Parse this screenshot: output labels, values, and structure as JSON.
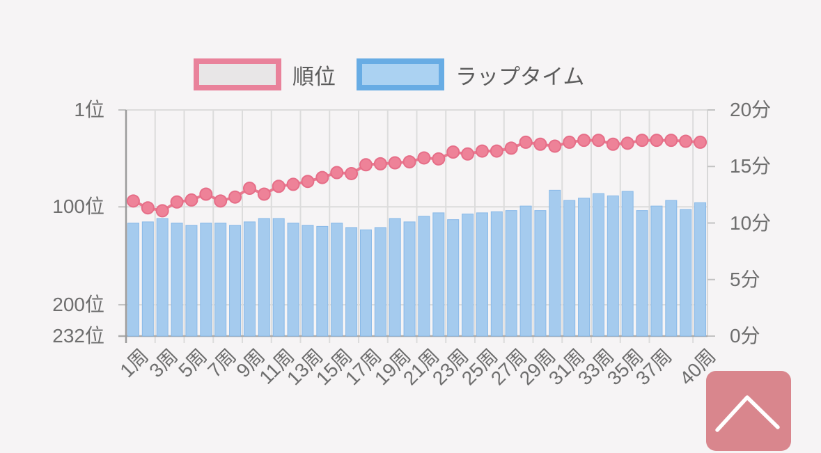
{
  "legend": {
    "items": [
      {
        "id": "rank",
        "label": "順位",
        "swatch_fill": "#e8e6e7",
        "swatch_border": "#e9829b"
      },
      {
        "id": "laptime",
        "label": "ラップタイム",
        "swatch_fill": "#abd2f2",
        "swatch_border": "#68ace4"
      }
    ]
  },
  "chart_data": {
    "type": "bar",
    "combo": "line over bars, dual y-axes",
    "title": "",
    "grid": true,
    "legend_position": "top",
    "x_unit": "周",
    "laps_count": 40,
    "x_tick_labels": [
      "1周",
      "3周",
      "5周",
      "7周",
      "9周",
      "11周",
      "13周",
      "15周",
      "17周",
      "19周",
      "21周",
      "23周",
      "25周",
      "27周",
      "29周",
      "31周",
      "33周",
      "35周",
      "37周",
      "40周"
    ],
    "x_tick_laps": [
      1,
      3,
      5,
      7,
      9,
      11,
      13,
      15,
      17,
      19,
      21,
      23,
      25,
      27,
      29,
      31,
      33,
      35,
      37,
      40
    ],
    "left_axis": {
      "title": "順位",
      "inverted": true,
      "range": [
        1,
        232
      ],
      "ticks": [
        {
          "label": "1位",
          "value": 1
        },
        {
          "label": "100位",
          "value": 100
        },
        {
          "label": "200位",
          "value": 200
        },
        {
          "label": "232位",
          "value": 232
        }
      ]
    },
    "right_axis": {
      "title": "ラップタイム",
      "range": [
        0,
        20
      ],
      "ticks": [
        {
          "label": "20分",
          "value": 20
        },
        {
          "label": "15分",
          "value": 15
        },
        {
          "label": "10分",
          "value": 10
        },
        {
          "label": "5分",
          "value": 5
        },
        {
          "label": "0分",
          "value": 0
        }
      ]
    },
    "series": [
      {
        "name": "順位",
        "type": "line",
        "axis": "left",
        "line_color": "#e8798f",
        "marker_fill": "#ee8298",
        "marker_border": "#e66e88",
        "values": [
          94,
          101,
          104,
          95,
          93,
          87,
          94,
          90,
          81,
          87,
          79,
          77,
          74,
          70,
          65,
          66,
          57,
          56,
          55,
          54,
          50,
          51,
          44,
          46,
          43,
          43,
          40,
          34,
          36,
          38,
          34,
          32,
          32,
          36,
          35,
          32,
          32,
          32,
          33,
          34
        ]
      },
      {
        "name": "ラップタイム",
        "type": "bar",
        "axis": "right",
        "bar_fill": "#a5cbee",
        "bar_border": "#88b9e8",
        "values": [
          10.0,
          10.1,
          10.4,
          10.0,
          9.8,
          10.0,
          10.0,
          9.8,
          10.1,
          10.4,
          10.4,
          10.0,
          9.8,
          9.7,
          10.0,
          9.6,
          9.4,
          9.6,
          10.4,
          10.1,
          10.6,
          10.9,
          10.3,
          10.8,
          10.9,
          11.0,
          11.1,
          11.5,
          11.1,
          12.9,
          12.0,
          12.2,
          12.6,
          12.4,
          12.8,
          11.1,
          11.5,
          12.0,
          11.2,
          11.8
        ]
      }
    ]
  },
  "scroll_top_button": {
    "icon": "chevron-up-icon",
    "color": "#d9868d"
  },
  "colors": {
    "background": "#f6f4f5",
    "gridline": "#dcdcdc",
    "axis_line": "#9b9b9b",
    "baseline": "#ababab",
    "tick_stub": "#c2c2c2",
    "right_axis_line": "#d8d8d8",
    "text": "#6e6e6e"
  }
}
